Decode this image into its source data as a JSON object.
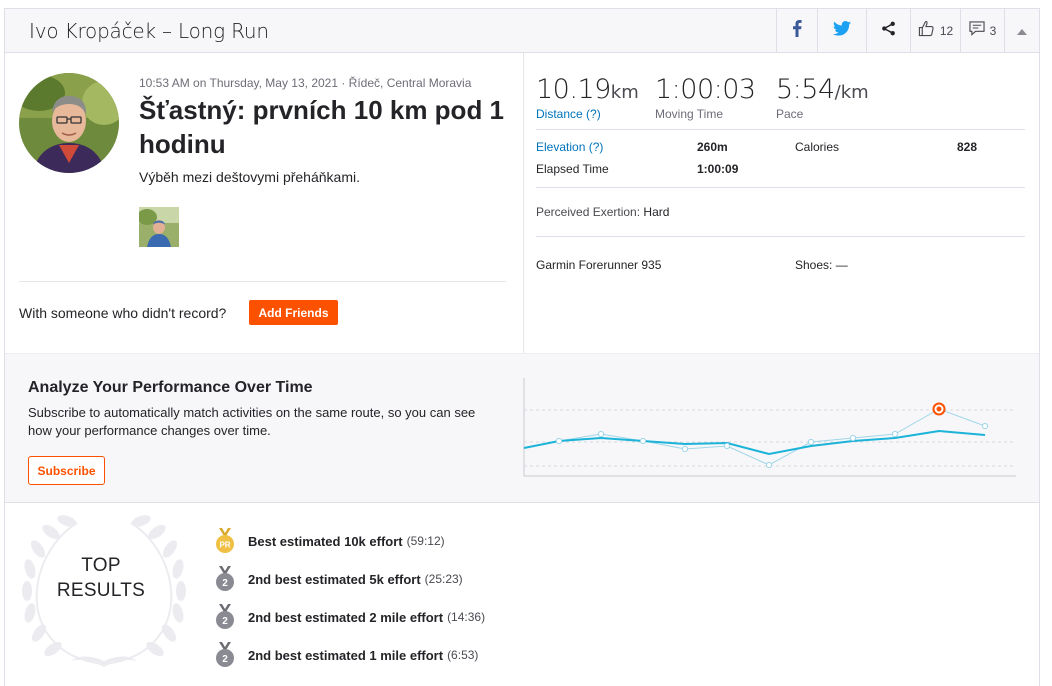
{
  "header": {
    "title": "Ivo Kropáček – Long Run",
    "kudos_count": "12",
    "comment_count": "3",
    "icons": [
      "facebook-icon",
      "twitter-icon",
      "share-icon",
      "thumbs-up-icon",
      "comment-icon",
      "collapse-icon"
    ]
  },
  "activity": {
    "meta": "10:53 AM on Thursday, May 13, 2021 · Řídeč, Central Moravia",
    "title": "Šťastný: prvních 10 km pod 1 hodinu",
    "description": "Výběh mezi deštovymi přeháňkami.",
    "with_someone": "With someone who didn't record?",
    "add_friends_label": "Add Friends"
  },
  "stats": {
    "distance_value": "10.19",
    "distance_unit": "km",
    "distance_label": "Distance (?)",
    "moving_time_value": "1:00:03",
    "moving_time_label": "Moving Time",
    "pace_value": "5:54",
    "pace_unit": "/km",
    "pace_label": "Pace",
    "elevation_label": "Elevation (?)",
    "elevation_value": "260m",
    "calories_label": "Calories",
    "calories_value": "828",
    "elapsed_label": "Elapsed Time",
    "elapsed_value": "1:00:09",
    "exertion_label": "Perceived Exertion:",
    "exertion_value": "Hard",
    "device": "Garmin Forerunner 935",
    "shoes_label": "Shoes:",
    "shoes_value": "—"
  },
  "analyze": {
    "title": "Analyze Your Performance Over Time",
    "text": "Subscribe to automatically match activities on the same route, so you can see how your performance changes over time.",
    "subscribe_label": "Subscribe"
  },
  "top_results": {
    "label_line1": "TOP",
    "label_line2": "RESULTS",
    "items": [
      {
        "title": "Best estimated 10k effort",
        "time": "(59:12)",
        "medal": "PR",
        "medal_color": "#f0c044"
      },
      {
        "title": "2nd best estimated 5k effort",
        "time": "(25:23)",
        "medal": "2",
        "medal_color": "#8a8a92"
      },
      {
        "title": "2nd best estimated 2 mile effort",
        "time": "(14:36)",
        "medal": "2",
        "medal_color": "#8a8a92"
      },
      {
        "title": "2nd best estimated 1 mile effort",
        "time": "(6:53)",
        "medal": "2",
        "medal_color": "#8a8a92"
      }
    ]
  },
  "colors": {
    "brand": "#fc5200",
    "link": "#0073bb",
    "trend": "#1bb3d8",
    "trend_light": "#9fd6e8"
  }
}
